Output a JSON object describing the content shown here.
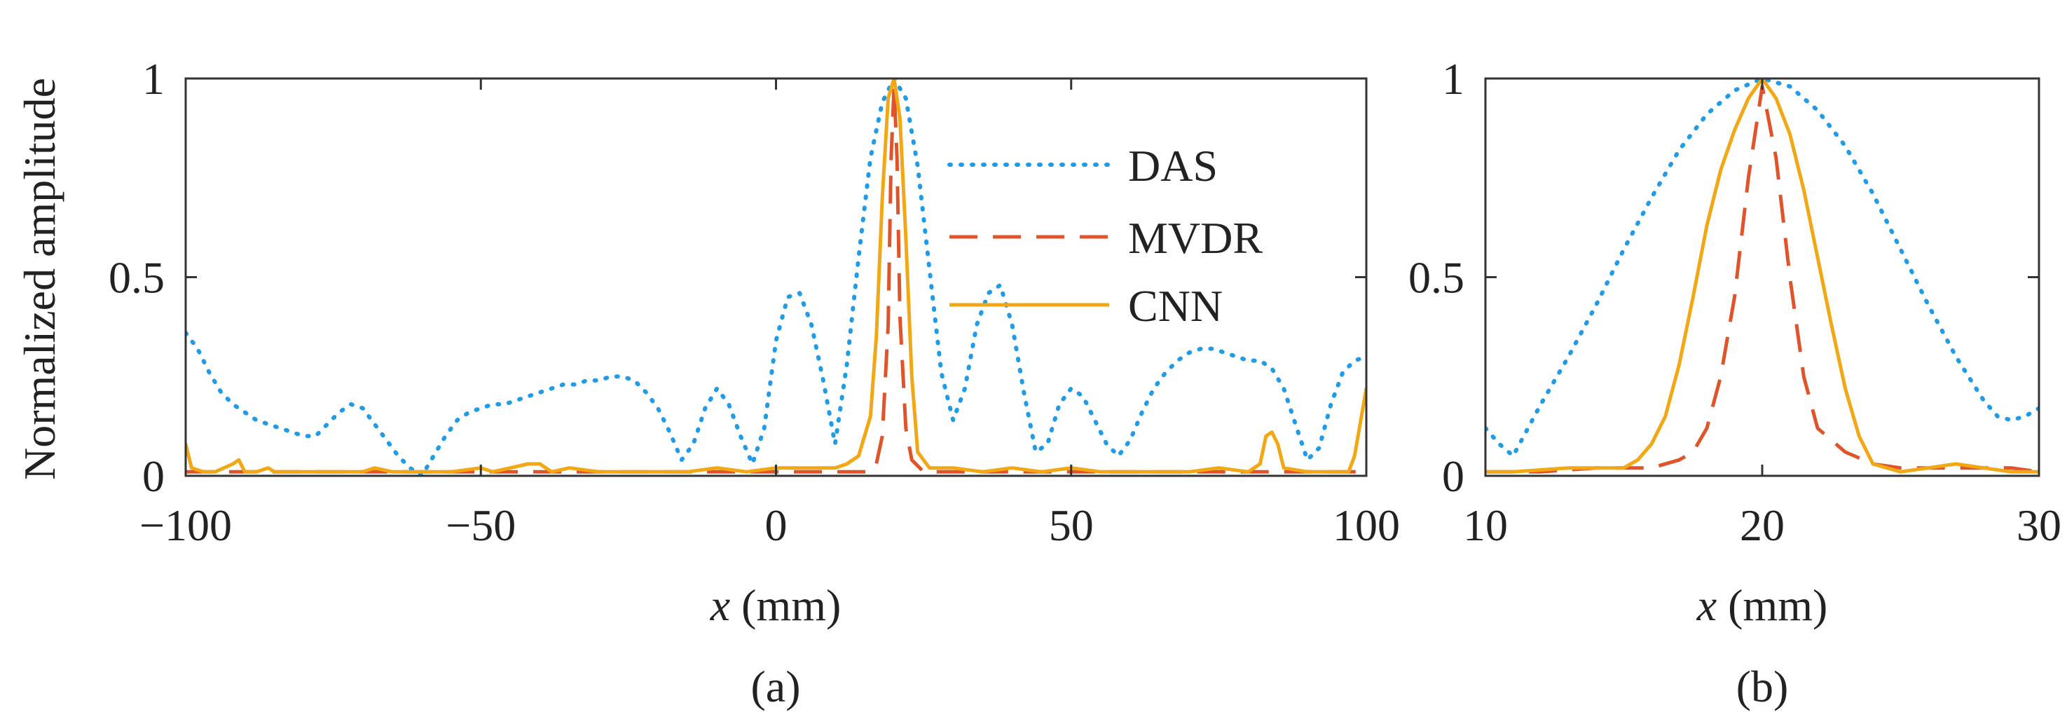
{
  "colors": {
    "DAS": "#1f9be8",
    "MVDR": "#e0542a",
    "CNN": "#f2a814",
    "axis": "#333333"
  },
  "chart_data": [
    {
      "type": "line",
      "panel_label": "(a)",
      "xlabel_var": "x",
      "xlabel_unit": " (mm)",
      "ylabel": "Normalized amplitude",
      "xlim": [
        -100,
        100
      ],
      "ylim": [
        0,
        1
      ],
      "xticks": [
        -100,
        -50,
        0,
        50,
        100
      ],
      "xtick_labels": [
        "−100",
        "−50",
        "0",
        "50",
        "100"
      ],
      "yticks": [
        0,
        0.5,
        1
      ],
      "ytick_labels": [
        "0",
        "0.5",
        "1"
      ],
      "legend": [
        "DAS",
        "MVDR",
        "CNN"
      ],
      "legend_position": "top-right (inside, near center)",
      "series": [
        {
          "name": "DAS",
          "style": "dotted",
          "x": [
            -100,
            -98,
            -96,
            -94,
            -92,
            -90,
            -88,
            -86,
            -84,
            -82,
            -80,
            -78,
            -76,
            -74,
            -72,
            -70,
            -68,
            -66,
            -64,
            -62,
            -60,
            -58,
            -56,
            -54,
            -52,
            -50,
            -48,
            -46,
            -44,
            -42,
            -40,
            -38,
            -36,
            -34,
            -32,
            -30,
            -28,
            -26,
            -24,
            -22,
            -20,
            -18,
            -16,
            -14,
            -12,
            -10,
            -8,
            -6,
            -4,
            -2,
            0,
            2,
            4,
            6,
            8,
            10,
            12,
            14,
            16,
            18,
            20,
            22,
            24,
            26,
            28,
            30,
            32,
            34,
            36,
            38,
            40,
            42,
            44,
            46,
            48,
            50,
            52,
            54,
            56,
            58,
            60,
            62,
            64,
            66,
            68,
            70,
            72,
            74,
            76,
            78,
            80,
            82,
            84,
            86,
            88,
            90,
            92,
            94,
            96,
            98,
            100
          ],
          "y": [
            0.36,
            0.32,
            0.26,
            0.21,
            0.18,
            0.16,
            0.14,
            0.13,
            0.12,
            0.11,
            0.1,
            0.1,
            0.13,
            0.16,
            0.18,
            0.17,
            0.13,
            0.09,
            0.05,
            0.02,
            0.0,
            0.05,
            0.1,
            0.14,
            0.16,
            0.17,
            0.18,
            0.18,
            0.19,
            0.2,
            0.21,
            0.22,
            0.23,
            0.23,
            0.24,
            0.24,
            0.25,
            0.25,
            0.24,
            0.21,
            0.17,
            0.11,
            0.04,
            0.08,
            0.17,
            0.22,
            0.18,
            0.1,
            0.03,
            0.12,
            0.34,
            0.45,
            0.46,
            0.38,
            0.24,
            0.08,
            0.28,
            0.55,
            0.8,
            0.94,
            1.0,
            0.95,
            0.78,
            0.52,
            0.26,
            0.14,
            0.22,
            0.38,
            0.46,
            0.48,
            0.38,
            0.21,
            0.06,
            0.08,
            0.18,
            0.22,
            0.2,
            0.14,
            0.08,
            0.05,
            0.09,
            0.16,
            0.22,
            0.26,
            0.29,
            0.31,
            0.32,
            0.32,
            0.31,
            0.3,
            0.29,
            0.29,
            0.27,
            0.22,
            0.13,
            0.04,
            0.07,
            0.18,
            0.26,
            0.29,
            0.3
          ]
        },
        {
          "name": "MVDR",
          "style": "dashed",
          "x": [
            -100,
            -90,
            -80,
            -70,
            -60,
            -50,
            -40,
            -30,
            -20,
            -10,
            0,
            10,
            14,
            16,
            17,
            18,
            19,
            19.5,
            20,
            20.5,
            21,
            22,
            23,
            25,
            30,
            40,
            50,
            60,
            70,
            80,
            90,
            100
          ],
          "y": [
            0.01,
            0.01,
            0.01,
            0.01,
            0.01,
            0.01,
            0.01,
            0.01,
            0.01,
            0.01,
            0.01,
            0.01,
            0.01,
            0.01,
            0.03,
            0.1,
            0.38,
            0.8,
            0.98,
            0.8,
            0.4,
            0.12,
            0.04,
            0.01,
            0.01,
            0.01,
            0.01,
            0.01,
            0.01,
            0.01,
            0.01,
            0.01
          ]
        },
        {
          "name": "CNN",
          "style": "solid",
          "x": [
            -100,
            -99,
            -97,
            -95,
            -92,
            -91,
            -90,
            -88,
            -86,
            -85,
            -84,
            -80,
            -75,
            -70,
            -68,
            -65,
            -60,
            -55,
            -50,
            -48,
            -45,
            -42,
            -40,
            -38,
            -35,
            -30,
            -25,
            -20,
            -15,
            -10,
            -5,
            0,
            5,
            10,
            12,
            14,
            16,
            17,
            18,
            19,
            20,
            21,
            22,
            23,
            24,
            26,
            30,
            35,
            40,
            45,
            50,
            55,
            60,
            65,
            70,
            75,
            80,
            82,
            83,
            84,
            85,
            86,
            90,
            95,
            97,
            98,
            100
          ],
          "y": [
            0.08,
            0.02,
            0.01,
            0.01,
            0.03,
            0.04,
            0.01,
            0.01,
            0.02,
            0.01,
            0.01,
            0.01,
            0.01,
            0.01,
            0.02,
            0.01,
            0.01,
            0.01,
            0.02,
            0.01,
            0.02,
            0.03,
            0.03,
            0.01,
            0.02,
            0.01,
            0.01,
            0.01,
            0.01,
            0.02,
            0.01,
            0.02,
            0.02,
            0.02,
            0.03,
            0.05,
            0.15,
            0.35,
            0.7,
            0.95,
            1.0,
            0.9,
            0.6,
            0.25,
            0.06,
            0.02,
            0.02,
            0.01,
            0.02,
            0.01,
            0.02,
            0.01,
            0.01,
            0.01,
            0.01,
            0.02,
            0.01,
            0.03,
            0.1,
            0.11,
            0.08,
            0.02,
            0.01,
            0.01,
            0.01,
            0.05,
            0.22
          ]
        }
      ]
    },
    {
      "type": "line",
      "panel_label": "(b)",
      "xlabel_var": "x",
      "xlabel_unit": " (mm)",
      "ylabel": "",
      "xlim": [
        10,
        30
      ],
      "ylim": [
        0,
        1
      ],
      "xticks": [
        10,
        20,
        30
      ],
      "xtick_labels": [
        "10",
        "20",
        "30"
      ],
      "yticks": [
        0,
        0.5,
        1
      ],
      "ytick_labels": [
        "0",
        "0.5",
        "1"
      ],
      "series": [
        {
          "name": "DAS",
          "style": "dotted",
          "x": [
            10,
            10.5,
            11,
            12,
            13,
            14,
            15,
            16,
            17,
            18,
            19,
            20,
            21,
            22,
            23,
            24,
            25,
            26,
            27,
            28,
            28.5,
            29,
            29.5,
            30
          ],
          "y": [
            0.12,
            0.08,
            0.05,
            0.18,
            0.3,
            0.43,
            0.57,
            0.7,
            0.82,
            0.91,
            0.97,
            1.0,
            0.98,
            0.92,
            0.83,
            0.71,
            0.57,
            0.43,
            0.3,
            0.19,
            0.15,
            0.14,
            0.15,
            0.17
          ]
        },
        {
          "name": "MVDR",
          "style": "dashed",
          "x": [
            10,
            12,
            14,
            15,
            16,
            17,
            17.5,
            18,
            18.5,
            19,
            19.5,
            20,
            20.5,
            21,
            21.5,
            22,
            23,
            24,
            25,
            26,
            27,
            28,
            29,
            30
          ],
          "y": [
            0.01,
            0.01,
            0.02,
            0.02,
            0.02,
            0.04,
            0.06,
            0.12,
            0.25,
            0.45,
            0.75,
            0.98,
            0.8,
            0.5,
            0.25,
            0.12,
            0.06,
            0.03,
            0.02,
            0.02,
            0.02,
            0.02,
            0.02,
            0.01
          ]
        },
        {
          "name": "CNN",
          "style": "solid",
          "x": [
            10,
            11,
            13,
            15,
            15.5,
            16,
            16.5,
            17,
            17.5,
            18,
            18.5,
            19,
            19.5,
            20,
            20.5,
            21,
            21.5,
            22,
            22.5,
            23,
            23.5,
            24,
            25,
            26,
            27,
            28,
            29,
            30
          ],
          "y": [
            0.01,
            0.01,
            0.02,
            0.02,
            0.04,
            0.08,
            0.15,
            0.28,
            0.45,
            0.63,
            0.77,
            0.87,
            0.95,
            1.0,
            0.95,
            0.86,
            0.72,
            0.55,
            0.38,
            0.22,
            0.1,
            0.03,
            0.01,
            0.02,
            0.03,
            0.02,
            0.01,
            0.01
          ]
        }
      ]
    }
  ]
}
